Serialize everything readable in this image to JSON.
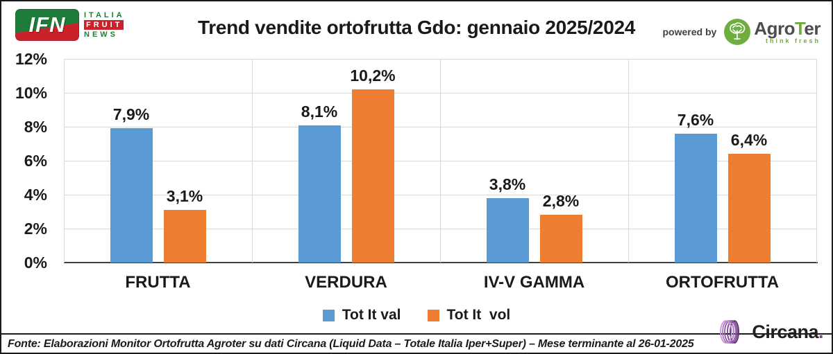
{
  "header": {
    "ifn_logo": {
      "monogram": "IFN",
      "line1": "ITALIA",
      "line2": "FRUIT",
      "line3": "NEWS"
    },
    "title": "Trend vendite ortofrutta Gdo: gennaio 2025/2024",
    "powered_by": "powered by",
    "agroter": {
      "name_part1": "Agro",
      "name_part2": "T",
      "name_part3": "er",
      "tagline": "think fresh"
    }
  },
  "chart_data": {
    "type": "bar",
    "title": "Trend vendite ortofrutta Gdo: gennaio 2025/2024",
    "categories": [
      "FRUTTA",
      "VERDURA",
      "IV-V GAMMA",
      "ORTOFRUTTA"
    ],
    "series": [
      {
        "name": "Tot It val",
        "color": "#5B9BD5",
        "values": [
          7.9,
          8.1,
          3.8,
          7.6
        ],
        "labels": [
          "7,9%",
          "8,1%",
          "3,8%",
          "7,6%"
        ]
      },
      {
        "name": "Tot It  vol",
        "color": "#ED7D31",
        "values": [
          3.1,
          10.2,
          2.8,
          6.4
        ],
        "labels": [
          "3,1%",
          "10,2%",
          "2,8%",
          "6,4%"
        ]
      }
    ],
    "xlabel": "",
    "ylabel": "",
    "ylim": [
      0,
      12
    ],
    "ytick_step": 2,
    "ytick_labels": [
      "0%",
      "2%",
      "4%",
      "6%",
      "8%",
      "10%",
      "12%"
    ],
    "grid": true,
    "legend_position": "bottom"
  },
  "footer": {
    "source": "Fonte: Elaborazioni Monitor Ortofrutta Agroter su dati Circana (Liquid Data – Totale Italia Iper+Super) – Mese terminante al 26-01-2025",
    "circana_name": "Circana",
    "circana_dot": "."
  },
  "colors": {
    "series_val": "#5B9BD5",
    "series_vol": "#ED7D31",
    "gridline": "#d9d9d9",
    "axis": "#404040",
    "ifn_green": "#1e7c3a",
    "ifn_red": "#c9222b",
    "agroter_green": "#6fae3e",
    "circana_purple": "#8e3a9e"
  }
}
